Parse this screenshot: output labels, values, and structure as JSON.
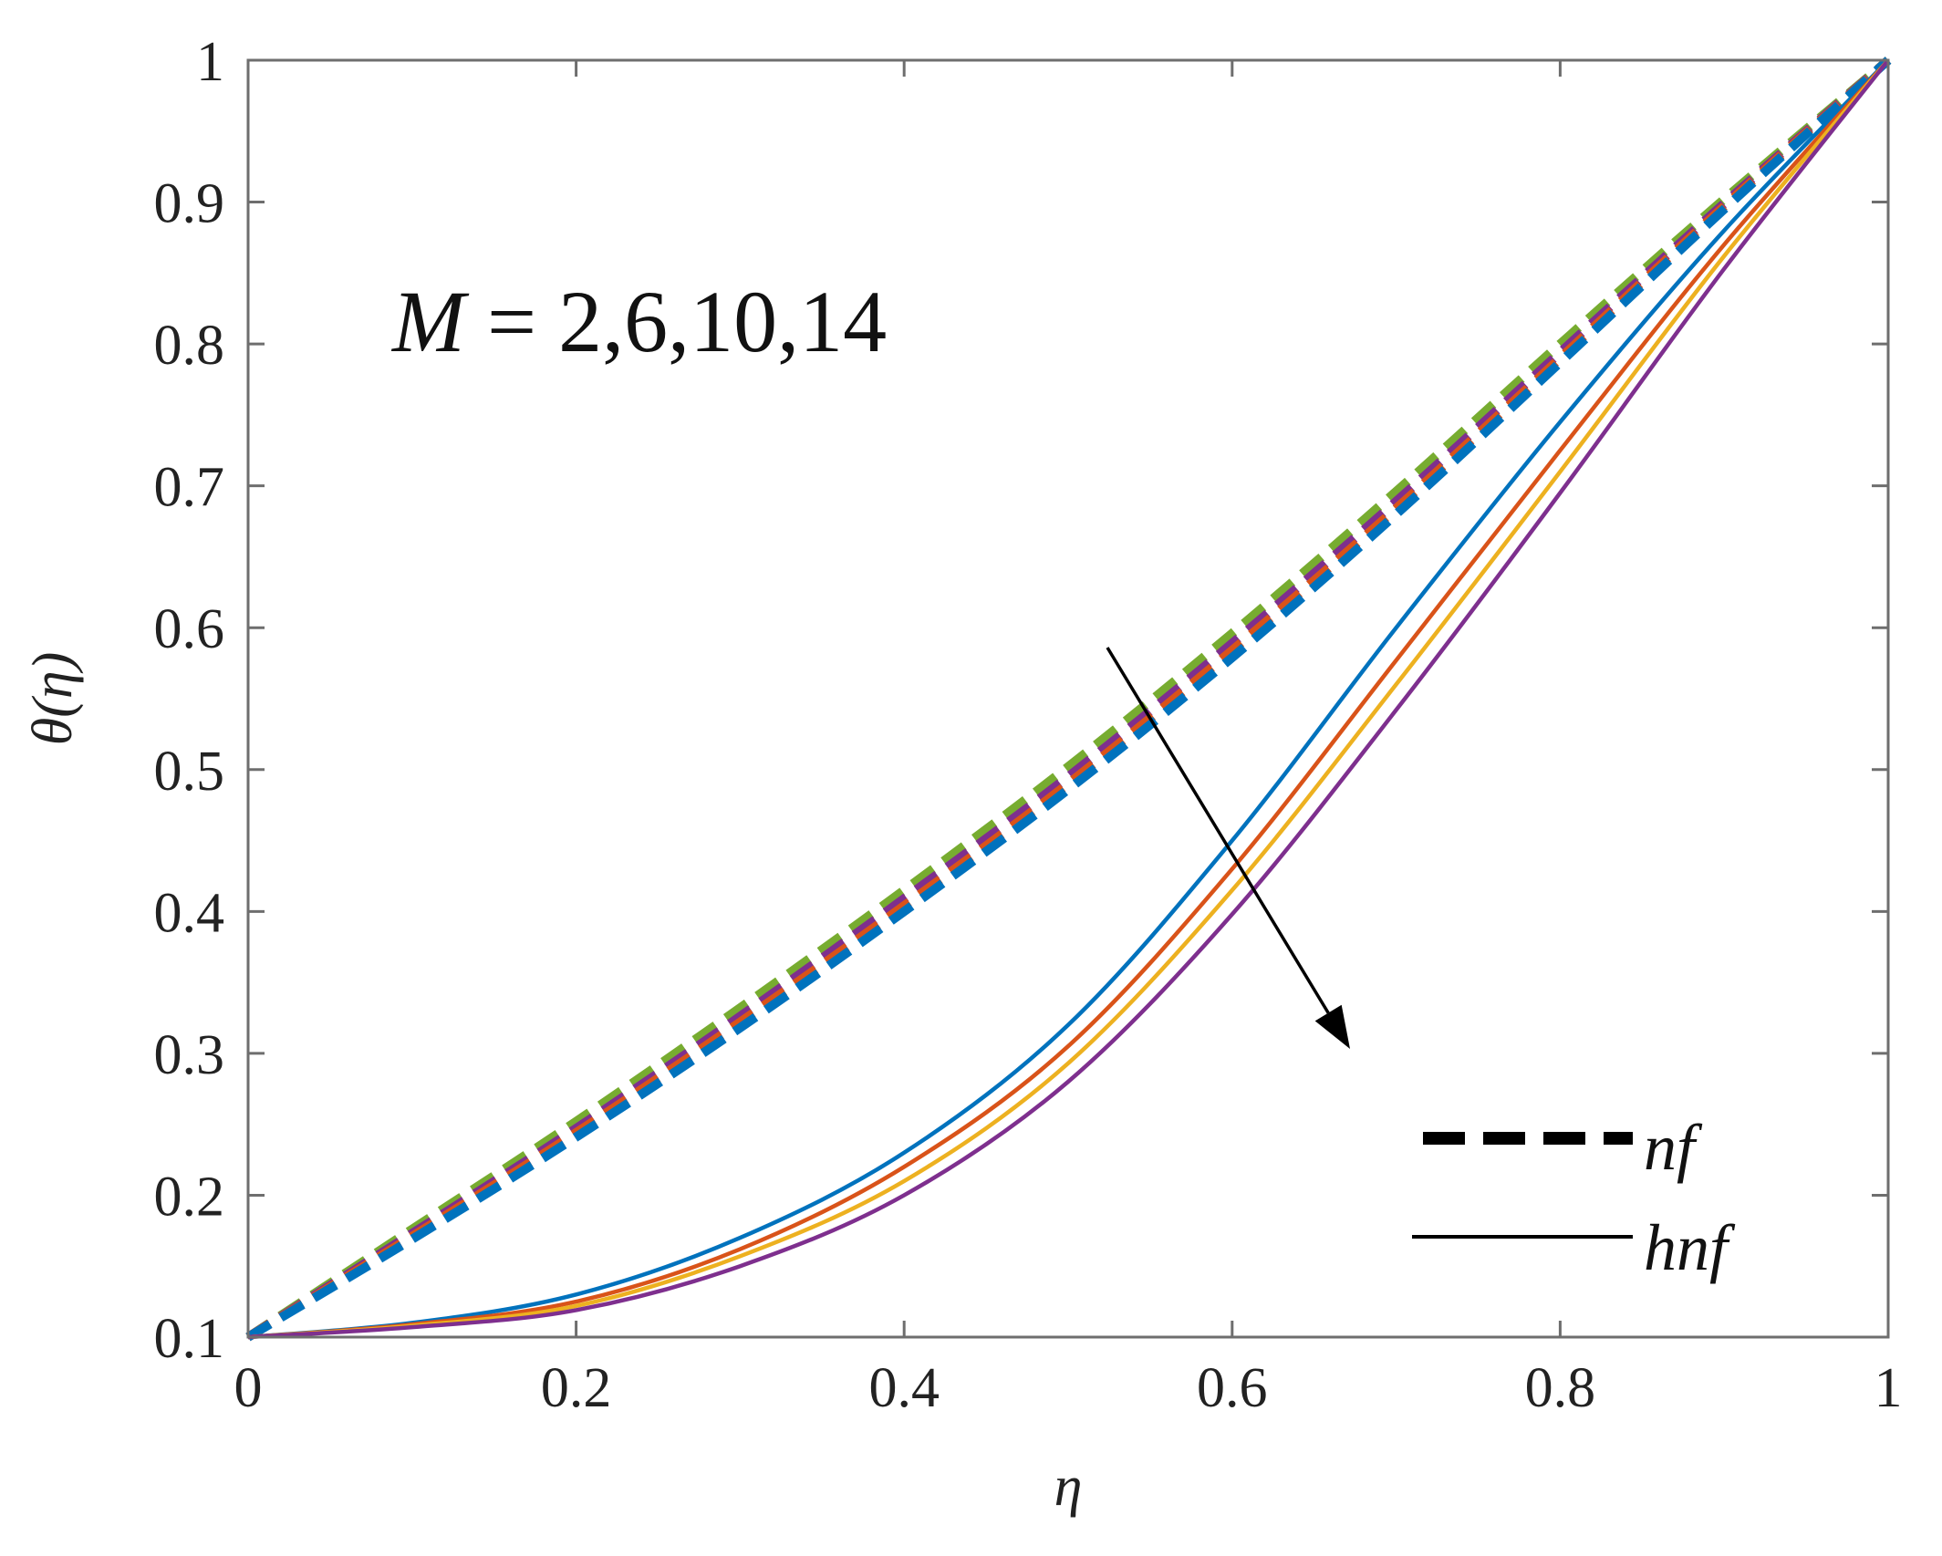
{
  "chart_data": {
    "type": "line",
    "title": "",
    "xlabel": "η",
    "ylabel": "θ(η)",
    "xlim": [
      0,
      1
    ],
    "ylim": [
      0.1,
      1
    ],
    "xticks": [
      "0",
      "0.2",
      "0.4",
      "0.6",
      "0.8",
      "1"
    ],
    "yticks": [
      "0.1",
      "0.2",
      "0.3",
      "0.4",
      "0.5",
      "0.6",
      "0.7",
      "0.8",
      "0.9",
      "1"
    ],
    "grid": false,
    "annotation": {
      "variable": "M",
      "equals": " = ",
      "values": "2,6,10,14",
      "arrow_direction": "increasing M decreases θ(η)"
    },
    "legend": {
      "placement": "bottom-right",
      "entries": [
        {
          "label": "nf",
          "style": "dashed"
        },
        {
          "label": "hnf",
          "style": "solid"
        }
      ]
    },
    "x": [
      0,
      0.1,
      0.2,
      0.3,
      0.4,
      0.5,
      0.6,
      0.7,
      0.8,
      0.9,
      1
    ],
    "series": [
      {
        "name": "nf, M=2",
        "style": "dashed",
        "color": "#77ac30",
        "values": [
          0.1,
          0.176,
          0.252,
          0.332,
          0.415,
          0.502,
          0.596,
          0.696,
          0.8,
          0.902,
          1.0
        ]
      },
      {
        "name": "nf, M=6",
        "style": "dashed",
        "color": "#7e2f8e",
        "values": [
          0.1,
          0.173,
          0.247,
          0.326,
          0.409,
          0.495,
          0.589,
          0.689,
          0.794,
          0.899,
          1.0
        ]
      },
      {
        "name": "nf, M=10",
        "style": "dashed",
        "color": "#d95319",
        "values": [
          0.1,
          0.171,
          0.244,
          0.322,
          0.404,
          0.49,
          0.584,
          0.684,
          0.79,
          0.897,
          1.0
        ]
      },
      {
        "name": "nf, M=14",
        "style": "dashed",
        "color": "#0072bd",
        "values": [
          0.1,
          0.169,
          0.241,
          0.318,
          0.4,
          0.486,
          0.579,
          0.68,
          0.787,
          0.895,
          1.0
        ]
      },
      {
        "name": "hnf, M=2",
        "style": "solid",
        "color": "#0072bd",
        "values": [
          0.1,
          0.11,
          0.13,
          0.17,
          0.23,
          0.32,
          0.45,
          0.6,
          0.745,
          0.88,
          1.0
        ]
      },
      {
        "name": "hnf, M=6",
        "style": "solid",
        "color": "#d95319",
        "values": [
          0.1,
          0.109,
          0.125,
          0.162,
          0.22,
          0.305,
          0.43,
          0.577,
          0.725,
          0.87,
          1.0
        ]
      },
      {
        "name": "hnf, M=10",
        "style": "solid",
        "color": "#edb120",
        "values": [
          0.1,
          0.108,
          0.122,
          0.157,
          0.21,
          0.293,
          0.415,
          0.56,
          0.71,
          0.862,
          1.0
        ]
      },
      {
        "name": "hnf, M=14",
        "style": "solid",
        "color": "#7e2f8e",
        "values": [
          0.1,
          0.107,
          0.119,
          0.15,
          0.2,
          0.28,
          0.398,
          0.542,
          0.695,
          0.853,
          1.0
        ]
      }
    ]
  }
}
